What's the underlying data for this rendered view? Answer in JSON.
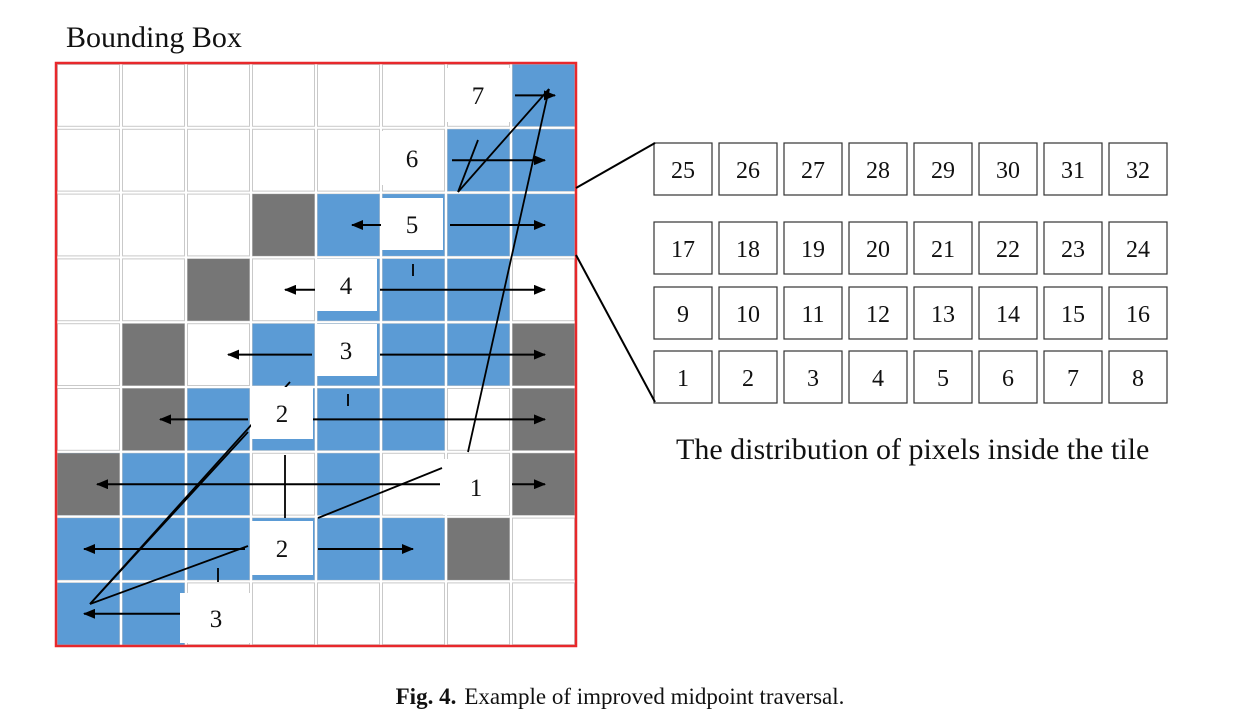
{
  "title": "Bounding Box",
  "tile_caption": "The distribution of pixels inside the tile",
  "caption": {
    "label": "Fig. 4.",
    "text": "Example of improved midpoint traversal."
  },
  "grid": {
    "cols": 8,
    "rows": 9
  },
  "colors": {
    "blue": "#5b9bd5",
    "gray": "#767676",
    "frame": "#e8282b",
    "line": "#000000"
  },
  "blue_cells": [
    [
      0,
      7
    ],
    [
      1,
      7
    ],
    [
      1,
      6
    ],
    [
      2,
      7
    ],
    [
      2,
      6
    ],
    [
      2,
      5
    ],
    [
      2,
      4
    ],
    [
      3,
      6
    ],
    [
      3,
      5
    ],
    [
      3,
      4
    ],
    [
      4,
      6
    ],
    [
      4,
      5
    ],
    [
      4,
      4
    ],
    [
      4,
      3
    ],
    [
      5,
      5
    ],
    [
      5,
      4
    ],
    [
      5,
      3
    ],
    [
      5,
      2
    ],
    [
      6,
      4
    ],
    [
      6,
      2
    ],
    [
      6,
      1
    ],
    [
      6,
      0
    ],
    [
      7,
      5
    ],
    [
      7,
      4
    ],
    [
      7,
      3
    ],
    [
      7,
      2
    ],
    [
      7,
      1
    ],
    [
      7,
      0
    ],
    [
      8,
      0
    ],
    [
      8,
      1
    ]
  ],
  "gray_cells": [
    [
      2,
      3
    ],
    [
      3,
      2
    ],
    [
      4,
      1
    ],
    [
      5,
      1
    ],
    [
      6,
      0
    ],
    [
      6,
      7
    ],
    [
      5,
      7
    ],
    [
      4,
      7
    ],
    [
      7,
      6
    ]
  ],
  "scan_labels": [
    "7",
    "6",
    "5",
    "4",
    "3",
    "2",
    "1",
    "2",
    "3"
  ],
  "tile_rows": [
    [
      "25",
      "26",
      "27",
      "28",
      "29",
      "30",
      "31",
      "32"
    ],
    [
      "17",
      "18",
      "19",
      "20",
      "21",
      "22",
      "23",
      "24"
    ],
    [
      "9",
      "10",
      "11",
      "12",
      "13",
      "14",
      "15",
      "16"
    ],
    [
      "1",
      "2",
      "3",
      "4",
      "5",
      "6",
      "7",
      "8"
    ]
  ]
}
